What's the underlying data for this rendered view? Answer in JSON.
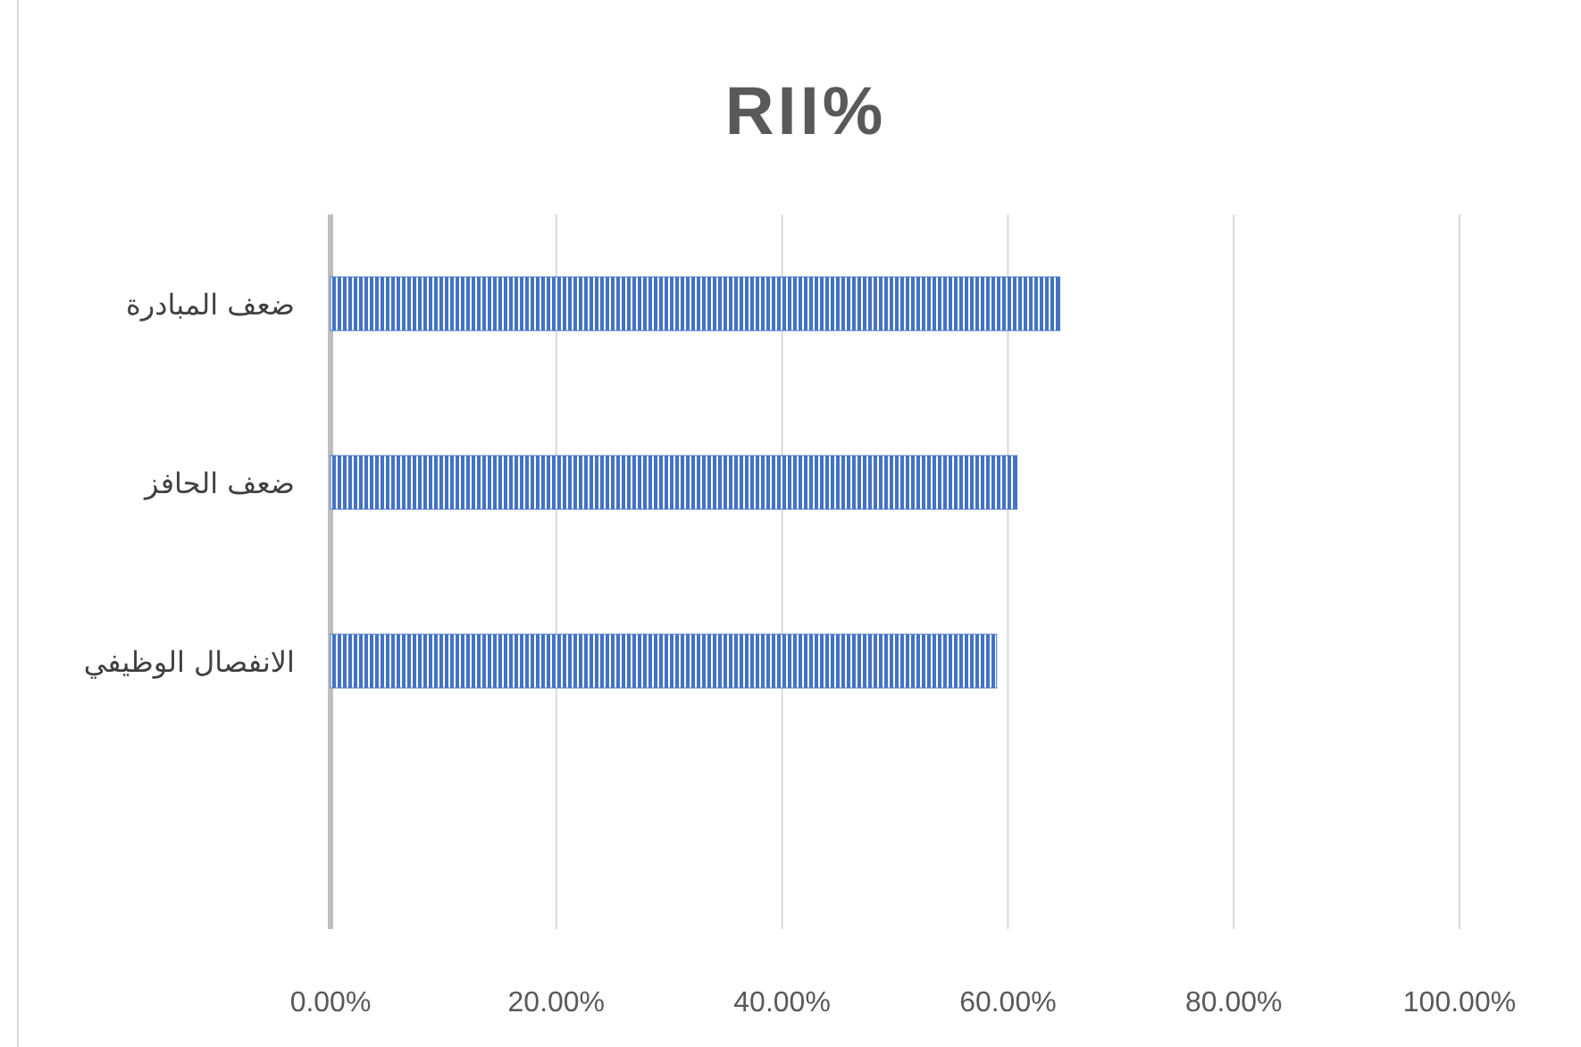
{
  "chart_data": {
    "type": "bar",
    "orientation": "horizontal",
    "title": "RII%",
    "categories": [
      "ضعف المبادرة",
      "ضعف الحافز",
      "الانفصال الوظيفي",
      null
    ],
    "values": [
      64.6,
      60.8,
      59.0,
      null
    ],
    "color": "#4472c4",
    "xlim": [
      0,
      100
    ],
    "xticks": [
      {
        "value": 0,
        "label": "0.00%"
      },
      {
        "value": 20,
        "label": "20.00%"
      },
      {
        "value": 40,
        "label": "40.00%"
      },
      {
        "value": 60,
        "label": "60.00%"
      },
      {
        "value": 80,
        "label": "80.00%"
      },
      {
        "value": 100,
        "label": "100.00%"
      }
    ],
    "grid": "x"
  }
}
